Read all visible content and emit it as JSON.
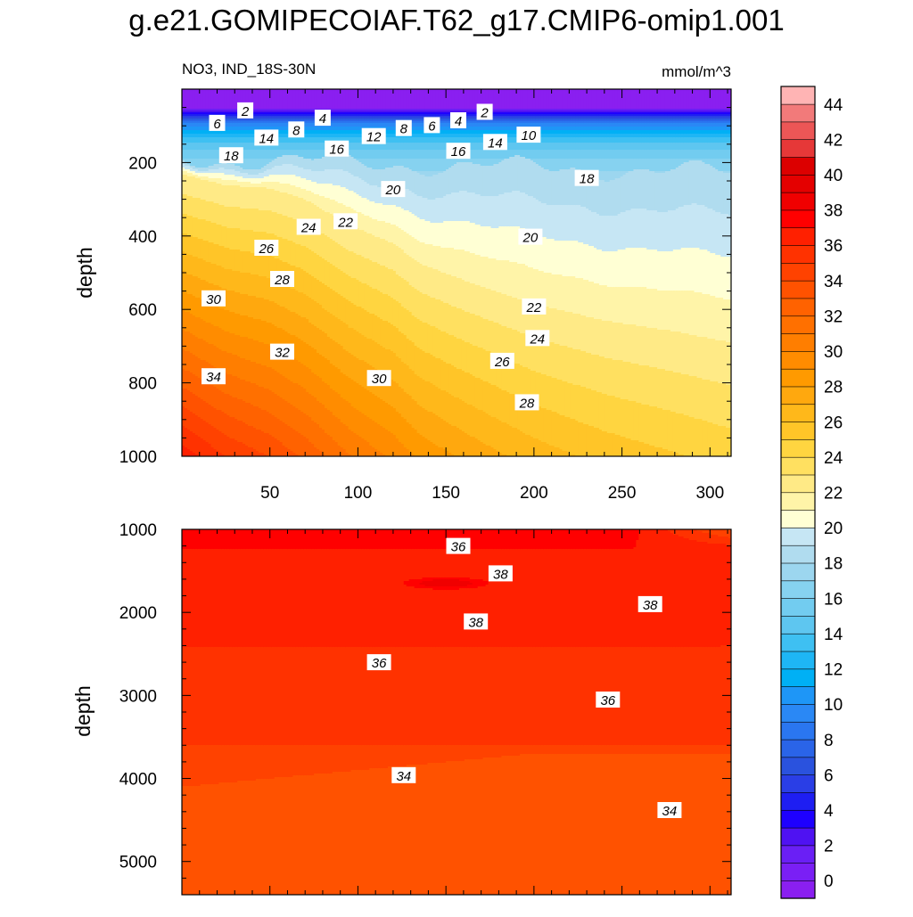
{
  "figure": {
    "title": "g.e21.GOMIPECOIAF.T62_g17.CMIP6-omip1.001",
    "subtitle_left": "NO3, IND_18S-30N",
    "subtitle_right": "mmol/m^3"
  },
  "chart_data": [
    {
      "type": "heatmap",
      "panel": "upper",
      "ylabel": "depth",
      "xlim": [
        0,
        312
      ],
      "ylim": [
        1000,
        0
      ],
      "xticks": [
        50,
        100,
        150,
        200,
        250,
        300
      ],
      "yticks": [
        200,
        400,
        600,
        800,
        1000
      ],
      "contour_interval": 1,
      "contour_labels": [
        {
          "x": 36,
          "y": 58,
          "text": "2"
        },
        {
          "x": 20,
          "y": 92,
          "text": "6"
        },
        {
          "x": 80,
          "y": 78,
          "text": "4"
        },
        {
          "x": 48,
          "y": 132,
          "text": "14"
        },
        {
          "x": 65,
          "y": 110,
          "text": "8"
        },
        {
          "x": 109,
          "y": 128,
          "text": "12"
        },
        {
          "x": 126,
          "y": 106,
          "text": "8"
        },
        {
          "x": 142,
          "y": 98,
          "text": "6"
        },
        {
          "x": 157,
          "y": 85,
          "text": "4"
        },
        {
          "x": 172,
          "y": 62,
          "text": "2"
        },
        {
          "x": 197,
          "y": 124,
          "text": "10"
        },
        {
          "x": 178,
          "y": 144,
          "text": "14"
        },
        {
          "x": 88,
          "y": 162,
          "text": "16"
        },
        {
          "x": 157,
          "y": 168,
          "text": "16"
        },
        {
          "x": 28,
          "y": 180,
          "text": "18"
        },
        {
          "x": 230,
          "y": 242,
          "text": "18"
        },
        {
          "x": 120,
          "y": 272,
          "text": "20"
        },
        {
          "x": 72,
          "y": 375,
          "text": "24"
        },
        {
          "x": 93,
          "y": 360,
          "text": "22"
        },
        {
          "x": 198,
          "y": 402,
          "text": "20"
        },
        {
          "x": 48,
          "y": 432,
          "text": "26"
        },
        {
          "x": 57,
          "y": 517,
          "text": "28"
        },
        {
          "x": 18,
          "y": 570,
          "text": "30"
        },
        {
          "x": 200,
          "y": 592,
          "text": "22"
        },
        {
          "x": 202,
          "y": 678,
          "text": "24"
        },
        {
          "x": 57,
          "y": 715,
          "text": "32"
        },
        {
          "x": 182,
          "y": 740,
          "text": "26"
        },
        {
          "x": 18,
          "y": 782,
          "text": "34"
        },
        {
          "x": 112,
          "y": 787,
          "text": "30"
        },
        {
          "x": 196,
          "y": 853,
          "text": "28"
        }
      ]
    },
    {
      "type": "heatmap",
      "panel": "lower",
      "ylabel": "depth",
      "xlim": [
        0,
        312
      ],
      "ylim": [
        5400,
        1000
      ],
      "yticks": [
        1000,
        2000,
        3000,
        4000,
        5000
      ],
      "contour_interval": 1,
      "contour_labels": [
        {
          "x": 157,
          "y": 1200,
          "text": "36"
        },
        {
          "x": 181,
          "y": 1530,
          "text": "38"
        },
        {
          "x": 266,
          "y": 1900,
          "text": "38"
        },
        {
          "x": 167,
          "y": 2110,
          "text": "38"
        },
        {
          "x": 112,
          "y": 2600,
          "text": "36"
        },
        {
          "x": 242,
          "y": 3050,
          "text": "36"
        },
        {
          "x": 126,
          "y": 3960,
          "text": "34"
        },
        {
          "x": 277,
          "y": 4380,
          "text": "34"
        }
      ]
    }
  ],
  "colorbar": {
    "tick_labels": [
      "0",
      "2",
      "4",
      "6",
      "8",
      "10",
      "12",
      "14",
      "16",
      "18",
      "20",
      "22",
      "24",
      "26",
      "28",
      "30",
      "32",
      "34",
      "36",
      "38",
      "40",
      "42",
      "44"
    ],
    "colors": [
      "#8a1ff0",
      "#7a1ff5",
      "#6a1ff5",
      "#4f12f2",
      "#1e00ff",
      "#1e1ef2",
      "#2a3ee6",
      "#2a52de",
      "#2a64e8",
      "#2a76f0",
      "#2a88f5",
      "#1e96f7",
      "#00b0f5",
      "#1eb6f5",
      "#3ec0f2",
      "#5ec6f0",
      "#72ccf0",
      "#86d2f0",
      "#9cd6ef",
      "#b0dcef",
      "#c6e6f4",
      "#ffffd4",
      "#fff4a8",
      "#ffea86",
      "#ffe060",
      "#ffd540",
      "#ffc528",
      "#ffb81a",
      "#ffa80e",
      "#ff9a00",
      "#ff8c00",
      "#ff7e00",
      "#ff7000",
      "#ff6200",
      "#ff5200",
      "#ff4200",
      "#ff3200",
      "#ff2000",
      "#ff0000",
      "#f00000",
      "#e40000",
      "#dc0000",
      "#e63838",
      "#ec5656",
      "#f27a7a",
      "#ffb4b4"
    ]
  }
}
